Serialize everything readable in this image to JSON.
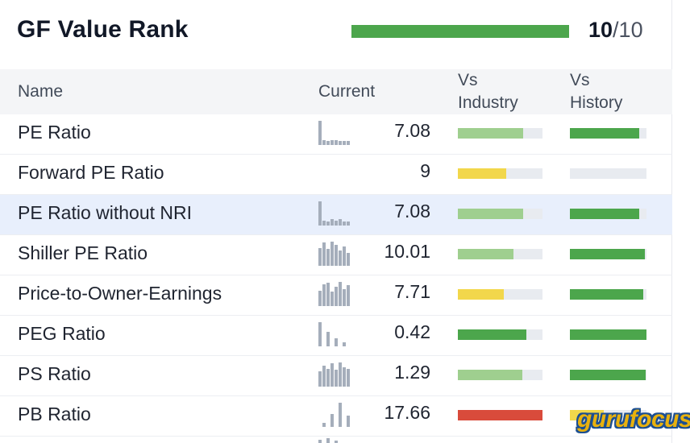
{
  "header": {
    "title": "GF Value Rank",
    "score": "10",
    "score_total": "/10",
    "score_fraction": 1.0,
    "bar_color": "#4ca64c"
  },
  "columns": {
    "name": "Name",
    "current": "Current",
    "vs_industry_line1": "Vs",
    "vs_industry_line2": "Industry",
    "vs_history_line1": "Vs",
    "vs_history_line2": "History"
  },
  "colors": {
    "green": "#4ca64c",
    "light_green": "#9fcf8f",
    "yellow": "#f2d74b",
    "red": "#d94b3b",
    "track": "#e8ebf0",
    "sparkline": "#a5aebb"
  },
  "rows": [
    {
      "name": "PE Ratio",
      "value": "7.08",
      "spark": [
        0.95,
        0.2,
        0.15,
        0.2,
        0.2,
        0.15,
        0.15,
        0.15
      ],
      "industry": {
        "fraction": 0.77,
        "color": "light_green"
      },
      "history": {
        "fraction": 0.9,
        "color": "green"
      },
      "highlight": false
    },
    {
      "name": "Forward PE Ratio",
      "value": "9",
      "spark": [],
      "industry": {
        "fraction": 0.57,
        "color": "yellow"
      },
      "history": {
        "fraction": 0.0,
        "color": "green"
      },
      "highlight": false
    },
    {
      "name": "PE Ratio without NRI",
      "value": "7.08",
      "spark": [
        0.95,
        0.2,
        0.15,
        0.25,
        0.2,
        0.25,
        0.15,
        0.15
      ],
      "industry": {
        "fraction": 0.77,
        "color": "light_green"
      },
      "history": {
        "fraction": 0.9,
        "color": "green"
      },
      "highlight": true
    },
    {
      "name": "Shiller PE Ratio",
      "value": "10.01",
      "spark": [
        0.7,
        0.9,
        0.65,
        0.95,
        0.8,
        0.6,
        0.75,
        0.5
      ],
      "industry": {
        "fraction": 0.66,
        "color": "light_green"
      },
      "history": {
        "fraction": 0.98,
        "color": "green"
      },
      "highlight": false
    },
    {
      "name": "Price-to-Owner-Earnings",
      "value": "7.71",
      "spark": [
        0.6,
        0.85,
        0.9,
        0.55,
        0.75,
        0.95,
        0.65,
        0.8
      ],
      "industry": {
        "fraction": 0.54,
        "color": "yellow"
      },
      "history": {
        "fraction": 0.96,
        "color": "green"
      },
      "highlight": false
    },
    {
      "name": "PEG Ratio",
      "value": "0.42",
      "spark": [
        0.95,
        0.0,
        0.55,
        0.0,
        0.3,
        0.0,
        0.15,
        0.0
      ],
      "industry": {
        "fraction": 0.81,
        "color": "green"
      },
      "history": {
        "fraction": 1.0,
        "color": "green"
      },
      "highlight": false
    },
    {
      "name": "PS Ratio",
      "value": "1.29",
      "spark": [
        0.6,
        0.8,
        0.7,
        0.9,
        0.65,
        0.95,
        0.75,
        0.7
      ],
      "industry": {
        "fraction": 0.76,
        "color": "light_green"
      },
      "history": {
        "fraction": 0.99,
        "color": "green"
      },
      "highlight": false
    },
    {
      "name": "PB Ratio",
      "value": "17.66",
      "spark": [
        0.0,
        0.15,
        0.0,
        0.5,
        0.0,
        0.95,
        0.0,
        0.45
      ],
      "industry": {
        "fraction": 1.0,
        "color": "red"
      },
      "history": {
        "fraction": 0.44,
        "color": "yellow"
      },
      "highlight": false
    }
  ],
  "logo_text": "gurufocus"
}
